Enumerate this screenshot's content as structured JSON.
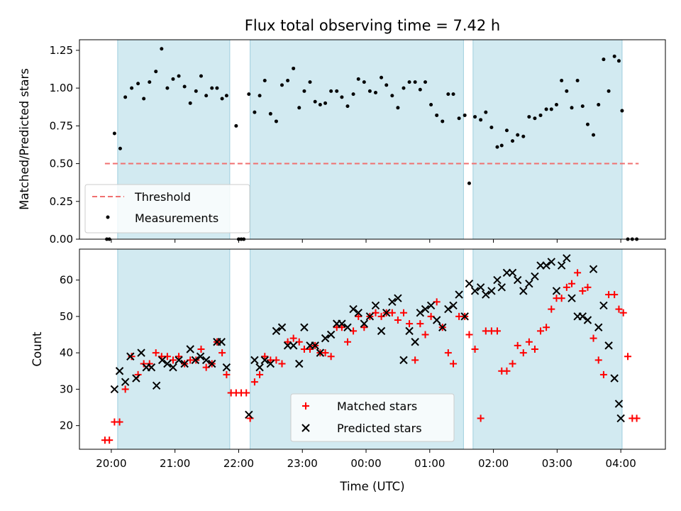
{
  "chart_data": [
    {
      "type": "scatter",
      "title": "Flux total observing time = 7.42 h",
      "xlabel": "",
      "ylabel": "Matched/Predicted stars",
      "ylim": [
        0,
        1.32
      ],
      "yticks": [
        "0.00",
        "0.25",
        "0.50",
        "0.75",
        "1.00",
        "1.25"
      ],
      "ytick_values": [
        0,
        0.25,
        0.5,
        0.75,
        1.0,
        1.25
      ],
      "xlim_hours": [
        -0.5,
        8.7
      ],
      "observing_windows_hours": [
        [
          0.1,
          1.86
        ],
        [
          2.18,
          5.53
        ],
        [
          5.68,
          8.02
        ]
      ],
      "threshold": {
        "name": "Threshold",
        "value": 0.5,
        "x_range": [
          -0.1,
          8.28
        ],
        "color": "#f07070"
      },
      "legend": {
        "position": "lower-left",
        "entries": [
          "Threshold",
          "Measurements"
        ]
      },
      "series": [
        {
          "name": "Measurements",
          "color": "#000000",
          "x": [
            -0.07,
            -0.03,
            0.05,
            0.14,
            0.22,
            0.32,
            0.42,
            0.51,
            0.6,
            0.7,
            0.79,
            0.88,
            0.97,
            1.06,
            1.15,
            1.24,
            1.33,
            1.41,
            1.49,
            1.58,
            1.66,
            1.74,
            1.81,
            1.96,
            2.0,
            2.04,
            2.08,
            2.16,
            2.25,
            2.33,
            2.41,
            2.5,
            2.59,
            2.68,
            2.77,
            2.86,
            2.95,
            3.03,
            3.12,
            3.2,
            3.28,
            3.36,
            3.45,
            3.54,
            3.62,
            3.71,
            3.8,
            3.88,
            3.97,
            4.06,
            4.15,
            4.24,
            4.32,
            4.41,
            4.5,
            4.59,
            4.68,
            4.77,
            4.85,
            4.93,
            5.02,
            5.11,
            5.2,
            5.29,
            5.37,
            5.46,
            5.55,
            5.62,
            5.71,
            5.8,
            5.88,
            5.97,
            6.06,
            6.13,
            6.21,
            6.3,
            6.38,
            6.47,
            6.56,
            6.65,
            6.74,
            6.83,
            6.91,
            6.99,
            7.07,
            7.15,
            7.23,
            7.32,
            7.4,
            7.48,
            7.57,
            7.65,
            7.73,
            7.81,
            7.9,
            7.97,
            8.02,
            8.11,
            8.18,
            8.25
          ],
          "y": [
            0.0,
            0.0,
            0.7,
            0.6,
            0.94,
            1.0,
            1.03,
            0.93,
            1.04,
            1.11,
            1.26,
            1.0,
            1.06,
            1.08,
            1.01,
            0.9,
            0.98,
            1.08,
            0.95,
            1.0,
            1.0,
            0.93,
            0.95,
            0.75,
            0.0,
            0.0,
            0.0,
            0.96,
            0.84,
            0.95,
            1.05,
            0.83,
            0.78,
            1.02,
            1.05,
            1.13,
            0.87,
            0.98,
            1.04,
            0.91,
            0.89,
            0.9,
            0.98,
            0.98,
            0.94,
            0.88,
            0.96,
            1.06,
            1.04,
            0.98,
            0.97,
            1.07,
            1.02,
            0.95,
            0.87,
            1.0,
            1.04,
            1.04,
            0.99,
            1.04,
            0.89,
            0.82,
            0.78,
            0.96,
            0.96,
            0.8,
            0.82,
            0.37,
            0.81,
            0.79,
            0.84,
            0.74,
            0.61,
            0.62,
            0.72,
            0.65,
            0.69,
            0.68,
            0.81,
            0.8,
            0.82,
            0.86,
            0.86,
            0.89,
            1.05,
            0.98,
            0.87,
            1.05,
            0.88,
            0.76,
            0.69,
            0.89,
            1.19,
            0.98,
            1.21,
            1.18,
            0.85,
            0.0,
            0.0,
            0.0
          ]
        }
      ]
    },
    {
      "type": "scatter",
      "title": "",
      "xlabel": "Time (UTC)",
      "ylabel": "Count",
      "ylim": [
        13.5,
        68.5
      ],
      "yticks": [
        "20",
        "30",
        "40",
        "50",
        "60"
      ],
      "ytick_values": [
        20,
        30,
        40,
        50,
        60
      ],
      "xlim_hours": [
        -0.5,
        8.7
      ],
      "xticks": [
        "20:00",
        "21:00",
        "22:00",
        "23:00",
        "00:00",
        "01:00",
        "02:00",
        "03:00",
        "04:00"
      ],
      "xtick_hours": [
        0,
        1,
        2,
        3,
        4,
        5,
        6,
        7,
        8
      ],
      "observing_windows_hours": [
        [
          0.1,
          1.86
        ],
        [
          2.18,
          5.53
        ],
        [
          5.68,
          8.02
        ]
      ],
      "legend": {
        "position": "lower-center",
        "entries": [
          "Matched stars",
          "Predicted stars"
        ]
      },
      "series": [
        {
          "name": "Matched stars",
          "marker": "plus",
          "color": "#ff0000",
          "x": [
            -0.1,
            -0.03,
            0.05,
            0.13,
            0.22,
            0.32,
            0.42,
            0.51,
            0.6,
            0.7,
            0.79,
            0.88,
            0.97,
            1.06,
            1.15,
            1.24,
            1.33,
            1.41,
            1.49,
            1.58,
            1.66,
            1.74,
            1.81,
            1.88,
            1.96,
            2.04,
            2.12,
            2.18,
            2.25,
            2.33,
            2.41,
            2.5,
            2.59,
            2.68,
            2.77,
            2.86,
            2.95,
            3.03,
            3.12,
            3.2,
            3.28,
            3.36,
            3.45,
            3.54,
            3.62,
            3.71,
            3.8,
            3.88,
            3.97,
            4.06,
            4.15,
            4.24,
            4.32,
            4.41,
            4.5,
            4.59,
            4.68,
            4.77,
            4.85,
            4.93,
            5.02,
            5.11,
            5.2,
            5.29,
            5.37,
            5.46,
            5.55,
            5.62,
            5.71,
            5.8,
            5.88,
            5.97,
            6.06,
            6.13,
            6.21,
            6.3,
            6.38,
            6.47,
            6.56,
            6.65,
            6.74,
            6.83,
            6.91,
            6.99,
            7.07,
            7.15,
            7.23,
            7.32,
            7.4,
            7.48,
            7.57,
            7.65,
            7.73,
            7.81,
            7.9,
            7.97,
            8.04,
            8.11,
            8.18,
            8.25
          ],
          "y": [
            16,
            16,
            21,
            21,
            30,
            39,
            34,
            37,
            37,
            40,
            39,
            39,
            38,
            39,
            37,
            38,
            38,
            41,
            36,
            37,
            43,
            40,
            34,
            29,
            29,
            29,
            29,
            22,
            32,
            34,
            39,
            38,
            38,
            37,
            43,
            44,
            43,
            41,
            41,
            42,
            40,
            40,
            39,
            47,
            47,
            43,
            46,
            50,
            47,
            50,
            51,
            50,
            51,
            51,
            49,
            51,
            48,
            38,
            48,
            45,
            50,
            54,
            47,
            40,
            37,
            50,
            50,
            45,
            41,
            22,
            46,
            46,
            46,
            35,
            35,
            37,
            42,
            40,
            43,
            41,
            46,
            47,
            52,
            55,
            55,
            58,
            59,
            62,
            57,
            58,
            44,
            38,
            34,
            56,
            56,
            52,
            51,
            39,
            22,
            22
          ],
          "y_note": ""
        },
        {
          "name": "Predicted stars",
          "marker": "x",
          "color": "#000000",
          "x": [
            0.05,
            0.13,
            0.22,
            0.3,
            0.39,
            0.47,
            0.55,
            0.63,
            0.71,
            0.8,
            0.88,
            0.97,
            1.06,
            1.15,
            1.24,
            1.32,
            1.4,
            1.49,
            1.58,
            1.66,
            1.73,
            1.81,
            2.16,
            2.25,
            2.33,
            2.41,
            2.5,
            2.59,
            2.68,
            2.77,
            2.86,
            2.95,
            3.03,
            3.12,
            3.2,
            3.28,
            3.36,
            3.45,
            3.54,
            3.62,
            3.71,
            3.8,
            3.88,
            3.97,
            4.06,
            4.15,
            4.24,
            4.32,
            4.41,
            4.5,
            4.59,
            4.68,
            4.77,
            4.85,
            4.93,
            5.02,
            5.11,
            5.2,
            5.29,
            5.37,
            5.46,
            5.55,
            5.62,
            5.71,
            5.8,
            5.88,
            5.97,
            6.06,
            6.13,
            6.21,
            6.3,
            6.38,
            6.47,
            6.56,
            6.65,
            6.74,
            6.83,
            6.91,
            6.99,
            7.07,
            7.15,
            7.23,
            7.32,
            7.4,
            7.48,
            7.57,
            7.65,
            7.73,
            7.81,
            7.9,
            7.97,
            8.0
          ],
          "y": [
            30,
            35,
            32,
            39,
            33,
            40,
            36,
            36,
            31,
            38,
            37,
            36,
            38,
            37,
            41,
            38,
            39,
            38,
            37,
            43,
            43,
            36,
            23,
            38,
            36,
            38,
            37,
            46,
            47,
            42,
            42,
            37,
            47,
            42,
            42,
            40,
            44,
            45,
            48,
            48,
            47,
            52,
            51,
            48,
            50,
            53,
            46,
            51,
            54,
            55,
            38,
            46,
            43,
            51,
            52,
            53,
            49,
            47,
            52,
            53,
            56,
            50,
            59,
            57,
            58,
            56,
            57,
            60,
            58,
            62,
            62,
            60,
            57,
            59,
            61,
            64,
            64,
            65,
            57,
            64,
            66,
            55,
            50,
            50,
            49,
            63,
            47,
            53,
            42,
            33,
            26,
            22
          ],
          "y_note": ""
        }
      ]
    }
  ]
}
